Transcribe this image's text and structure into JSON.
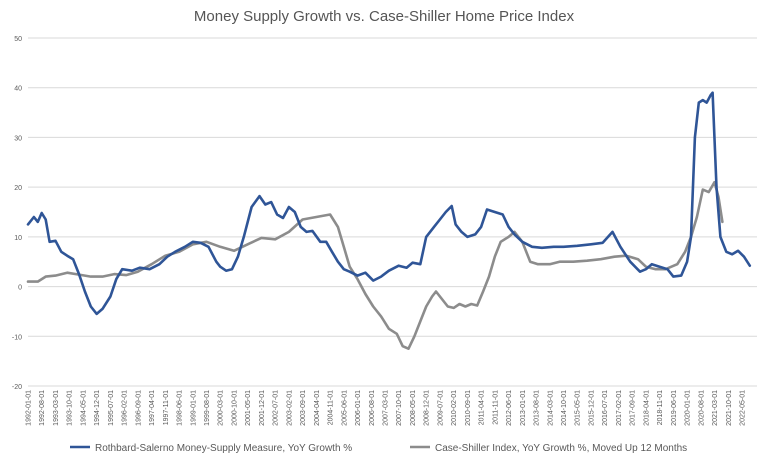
{
  "chart_data": {
    "type": "line",
    "title": "Money Supply Growth vs. Case-Shiller Home Price Index",
    "xlabel": "",
    "ylabel": "",
    "ylim": [
      -20,
      50
    ],
    "yticks": [
      -20,
      -10,
      0,
      10,
      20,
      30,
      40,
      50
    ],
    "grid": true,
    "legend_position": "bottom",
    "x_tick_labels": [
      "1992-01-01",
      "1992-08-01",
      "1993-03-01",
      "1993-10-01",
      "1994-05-01",
      "1994-12-01",
      "1995-07-01",
      "1996-02-01",
      "1996-09-01",
      "1997-04-01",
      "1997-11-01",
      "1998-06-01",
      "1999-01-01",
      "1999-08-01",
      "2000-03-01",
      "2000-10-01",
      "2001-05-01",
      "2001-12-01",
      "2002-07-01",
      "2003-02-01",
      "2003-09-01",
      "2004-04-01",
      "2004-11-01",
      "2005-06-01",
      "2006-01-01",
      "2006-08-01",
      "2007-03-01",
      "2007-10-01",
      "2008-05-01",
      "2008-12-01",
      "2009-07-01",
      "2010-02-01",
      "2010-09-01",
      "2011-04-01",
      "2011-11-01",
      "2012-06-01",
      "2013-01-01",
      "2013-08-01",
      "2014-03-01",
      "2014-10-01",
      "2015-05-01",
      "2015-12-01",
      "2016-07-01",
      "2017-02-01",
      "2017-09-01",
      "2018-04-01",
      "2018-11-01",
      "2019-06-01",
      "2020-01-01",
      "2020-08-01",
      "2021-03-01",
      "2021-10-01",
      "2022-05-01"
    ],
    "series": [
      {
        "name": "Rothbard-Salerno Money-Supply Measure, YoY Growth %",
        "color": "#2f5597",
        "points": [
          [
            "1992-01-01",
            12.5
          ],
          [
            "1992-04-01",
            14
          ],
          [
            "1992-06-01",
            13
          ],
          [
            "1992-08-01",
            14.8
          ],
          [
            "1992-10-01",
            13.5
          ],
          [
            "1992-12-01",
            9
          ],
          [
            "1993-03-01",
            9.2
          ],
          [
            "1993-06-01",
            7
          ],
          [
            "1993-09-01",
            6.2
          ],
          [
            "1993-12-01",
            5.5
          ],
          [
            "1994-03-01",
            2.5
          ],
          [
            "1994-06-01",
            -1
          ],
          [
            "1994-09-01",
            -4
          ],
          [
            "1994-12-01",
            -5.5
          ],
          [
            "1995-03-01",
            -4.5
          ],
          [
            "1995-07-01",
            -2
          ],
          [
            "1995-10-01",
            1.5
          ],
          [
            "1996-01-01",
            3.5
          ],
          [
            "1996-06-01",
            3.2
          ],
          [
            "1996-10-01",
            3.8
          ],
          [
            "1997-03-01",
            3.5
          ],
          [
            "1997-08-01",
            4.5
          ],
          [
            "1997-12-01",
            6
          ],
          [
            "1998-04-01",
            7
          ],
          [
            "1998-09-01",
            8
          ],
          [
            "1999-01-01",
            9
          ],
          [
            "1999-05-01",
            8.8
          ],
          [
            "1999-09-01",
            8
          ],
          [
            "2000-01-01",
            5
          ],
          [
            "2000-03-01",
            4
          ],
          [
            "2000-06-01",
            3.2
          ],
          [
            "2000-09-01",
            3.5
          ],
          [
            "2000-12-01",
            6
          ],
          [
            "2001-03-01",
            10
          ],
          [
            "2001-07-01",
            16
          ],
          [
            "2001-11-01",
            18.2
          ],
          [
            "2002-02-01",
            16.5
          ],
          [
            "2002-05-01",
            17
          ],
          [
            "2002-08-01",
            14.5
          ],
          [
            "2002-11-01",
            13.8
          ],
          [
            "2003-02-01",
            16
          ],
          [
            "2003-05-01",
            15
          ],
          [
            "2003-08-01",
            12
          ],
          [
            "2003-11-01",
            11
          ],
          [
            "2004-02-01",
            11.2
          ],
          [
            "2004-06-01",
            9
          ],
          [
            "2004-09-01",
            9
          ],
          [
            "2004-12-01",
            7
          ],
          [
            "2005-03-01",
            5
          ],
          [
            "2005-06-01",
            3.5
          ],
          [
            "2005-09-01",
            3
          ],
          [
            "2006-01-01",
            2.2
          ],
          [
            "2006-05-01",
            2.8
          ],
          [
            "2006-09-01",
            1.2
          ],
          [
            "2007-01-01",
            2
          ],
          [
            "2007-05-01",
            3.2
          ],
          [
            "2007-10-01",
            4.2
          ],
          [
            "2008-02-01",
            3.8
          ],
          [
            "2008-05-01",
            4.8
          ],
          [
            "2008-09-01",
            4.5
          ],
          [
            "2008-12-01",
            10
          ],
          [
            "2009-04-01",
            12
          ],
          [
            "2009-07-01",
            13.5
          ],
          [
            "2009-10-01",
            15
          ],
          [
            "2010-01-01",
            16.2
          ],
          [
            "2010-03-01",
            12.5
          ],
          [
            "2010-06-01",
            11
          ],
          [
            "2010-09-01",
            10
          ],
          [
            "2011-01-01",
            10.5
          ],
          [
            "2011-04-01",
            12
          ],
          [
            "2011-07-01",
            15.5
          ],
          [
            "2011-11-01",
            15
          ],
          [
            "2012-03-01",
            14.5
          ],
          [
            "2012-06-01",
            12
          ],
          [
            "2012-09-01",
            10.5
          ],
          [
            "2013-01-01",
            9
          ],
          [
            "2013-06-01",
            8
          ],
          [
            "2013-11-01",
            7.8
          ],
          [
            "2014-05-01",
            8
          ],
          [
            "2014-10-01",
            8
          ],
          [
            "2015-05-01",
            8.2
          ],
          [
            "2015-12-01",
            8.5
          ],
          [
            "2016-06-01",
            8.8
          ],
          [
            "2016-11-01",
            11
          ],
          [
            "2017-03-01",
            8
          ],
          [
            "2017-08-01",
            5
          ],
          [
            "2018-01-01",
            3
          ],
          [
            "2018-04-01",
            3.5
          ],
          [
            "2018-07-01",
            4.5
          ],
          [
            "2018-11-01",
            4
          ],
          [
            "2019-03-01",
            3.5
          ],
          [
            "2019-06-01",
            2
          ],
          [
            "2019-10-01",
            2.2
          ],
          [
            "2020-01-01",
            5
          ],
          [
            "2020-03-01",
            10
          ],
          [
            "2020-05-01",
            30
          ],
          [
            "2020-07-01",
            37
          ],
          [
            "2020-09-01",
            37.5
          ],
          [
            "2020-11-01",
            37
          ],
          [
            "2021-01-01",
            38.5
          ],
          [
            "2021-02-01",
            39
          ],
          [
            "2021-04-01",
            20
          ],
          [
            "2021-06-01",
            10
          ],
          [
            "2021-09-01",
            7
          ],
          [
            "2021-12-01",
            6.5
          ],
          [
            "2022-03-01",
            7.2
          ],
          [
            "2022-06-01",
            6
          ],
          [
            "2022-09-01",
            4.2
          ]
        ]
      },
      {
        "name": "Case-Shiller Index, YoY Growth %, Moved Up 12 Months",
        "color": "#8c8c8c",
        "points": [
          [
            "1992-01-01",
            1
          ],
          [
            "1992-06-01",
            1
          ],
          [
            "1992-10-01",
            2
          ],
          [
            "1993-03-01",
            2.2
          ],
          [
            "1993-09-01",
            2.8
          ],
          [
            "1994-03-01",
            2.4
          ],
          [
            "1994-09-01",
            2
          ],
          [
            "1995-03-01",
            2
          ],
          [
            "1995-09-01",
            2.5
          ],
          [
            "1996-03-01",
            2.3
          ],
          [
            "1996-09-01",
            3
          ],
          [
            "1997-04-01",
            4.5
          ],
          [
            "1997-11-01",
            6.2
          ],
          [
            "1998-06-01",
            7
          ],
          [
            "1999-01-01",
            8.5
          ],
          [
            "1999-08-01",
            9
          ],
          [
            "2000-03-01",
            8
          ],
          [
            "2000-10-01",
            7.2
          ],
          [
            "2001-05-01",
            8.5
          ],
          [
            "2001-12-01",
            9.8
          ],
          [
            "2002-07-01",
            9.5
          ],
          [
            "2003-02-01",
            11
          ],
          [
            "2003-09-01",
            13.5
          ],
          [
            "2004-04-01",
            14
          ],
          [
            "2004-11-01",
            14.5
          ],
          [
            "2005-03-01",
            12
          ],
          [
            "2005-06-01",
            8
          ],
          [
            "2005-09-01",
            4
          ],
          [
            "2006-01-01",
            1.5
          ],
          [
            "2006-05-01",
            -1.5
          ],
          [
            "2006-09-01",
            -4
          ],
          [
            "2007-01-01",
            -6
          ],
          [
            "2007-05-01",
            -8.5
          ],
          [
            "2007-09-01",
            -9.5
          ],
          [
            "2007-12-01",
            -12
          ],
          [
            "2008-03-01",
            -12.5
          ],
          [
            "2008-06-01",
            -10
          ],
          [
            "2008-09-01",
            -7
          ],
          [
            "2008-12-01",
            -4
          ],
          [
            "2009-03-01",
            -2
          ],
          [
            "2009-05-01",
            -1
          ],
          [
            "2009-08-01",
            -2.5
          ],
          [
            "2009-11-01",
            -4
          ],
          [
            "2010-02-01",
            -4.3
          ],
          [
            "2010-05-01",
            -3.5
          ],
          [
            "2010-08-01",
            -4
          ],
          [
            "2010-11-01",
            -3.5
          ],
          [
            "2011-02-01",
            -3.8
          ],
          [
            "2011-05-01",
            -1
          ],
          [
            "2011-08-01",
            2
          ],
          [
            "2011-11-01",
            6
          ],
          [
            "2012-02-01",
            9
          ],
          [
            "2012-06-01",
            10
          ],
          [
            "2012-09-01",
            11
          ],
          [
            "2013-01-01",
            9
          ],
          [
            "2013-05-01",
            5
          ],
          [
            "2013-09-01",
            4.5
          ],
          [
            "2014-03-01",
            4.5
          ],
          [
            "2014-08-01",
            5
          ],
          [
            "2015-03-01",
            5
          ],
          [
            "2015-10-01",
            5.2
          ],
          [
            "2016-05-01",
            5.5
          ],
          [
            "2016-12-01",
            6
          ],
          [
            "2017-06-01",
            6.2
          ],
          [
            "2017-12-01",
            5.5
          ],
          [
            "2018-04-01",
            4
          ],
          [
            "2018-09-01",
            3.5
          ],
          [
            "2019-02-01",
            3.5
          ],
          [
            "2019-08-01",
            4.5
          ],
          [
            "2019-12-01",
            7
          ],
          [
            "2020-03-01",
            10
          ],
          [
            "2020-06-01",
            14
          ],
          [
            "2020-09-01",
            19.5
          ],
          [
            "2020-12-01",
            19
          ],
          [
            "2021-03-01",
            21
          ],
          [
            "2021-05-01",
            18
          ],
          [
            "2021-07-01",
            13
          ]
        ]
      }
    ]
  }
}
